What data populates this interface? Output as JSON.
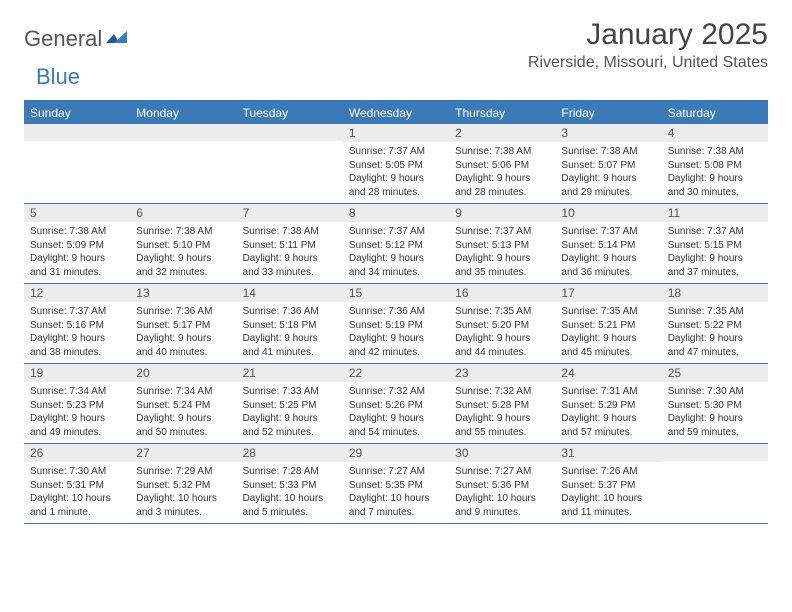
{
  "logo": {
    "general": "General",
    "blue": "Blue"
  },
  "title": "January 2025",
  "subtitle": "Riverside, Missouri, United States",
  "colors": {
    "accent": "#3a7ab8",
    "band": "#ececec",
    "text": "#333333",
    "title_text": "#444444",
    "subtitle_text": "#555555",
    "background": "#ffffff"
  },
  "typography": {
    "title_fontsize": 30,
    "subtitle_fontsize": 16,
    "weekday_fontsize": 12,
    "daynum_fontsize": 12,
    "body_fontsize": 10
  },
  "weekdays": [
    "Sunday",
    "Monday",
    "Tuesday",
    "Wednesday",
    "Thursday",
    "Friday",
    "Saturday"
  ],
  "weeks": [
    [
      {
        "n": "",
        "lines": []
      },
      {
        "n": "",
        "lines": []
      },
      {
        "n": "",
        "lines": []
      },
      {
        "n": "1",
        "lines": [
          "Sunrise: 7:37 AM",
          "Sunset: 5:05 PM",
          "Daylight: 9 hours",
          "and 28 minutes."
        ]
      },
      {
        "n": "2",
        "lines": [
          "Sunrise: 7:38 AM",
          "Sunset: 5:06 PM",
          "Daylight: 9 hours",
          "and 28 minutes."
        ]
      },
      {
        "n": "3",
        "lines": [
          "Sunrise: 7:38 AM",
          "Sunset: 5:07 PM",
          "Daylight: 9 hours",
          "and 29 minutes."
        ]
      },
      {
        "n": "4",
        "lines": [
          "Sunrise: 7:38 AM",
          "Sunset: 5:08 PM",
          "Daylight: 9 hours",
          "and 30 minutes."
        ]
      }
    ],
    [
      {
        "n": "5",
        "lines": [
          "Sunrise: 7:38 AM",
          "Sunset: 5:09 PM",
          "Daylight: 9 hours",
          "and 31 minutes."
        ]
      },
      {
        "n": "6",
        "lines": [
          "Sunrise: 7:38 AM",
          "Sunset: 5:10 PM",
          "Daylight: 9 hours",
          "and 32 minutes."
        ]
      },
      {
        "n": "7",
        "lines": [
          "Sunrise: 7:38 AM",
          "Sunset: 5:11 PM",
          "Daylight: 9 hours",
          "and 33 minutes."
        ]
      },
      {
        "n": "8",
        "lines": [
          "Sunrise: 7:37 AM",
          "Sunset: 5:12 PM",
          "Daylight: 9 hours",
          "and 34 minutes."
        ]
      },
      {
        "n": "9",
        "lines": [
          "Sunrise: 7:37 AM",
          "Sunset: 5:13 PM",
          "Daylight: 9 hours",
          "and 35 minutes."
        ]
      },
      {
        "n": "10",
        "lines": [
          "Sunrise: 7:37 AM",
          "Sunset: 5:14 PM",
          "Daylight: 9 hours",
          "and 36 minutes."
        ]
      },
      {
        "n": "11",
        "lines": [
          "Sunrise: 7:37 AM",
          "Sunset: 5:15 PM",
          "Daylight: 9 hours",
          "and 37 minutes."
        ]
      }
    ],
    [
      {
        "n": "12",
        "lines": [
          "Sunrise: 7:37 AM",
          "Sunset: 5:16 PM",
          "Daylight: 9 hours",
          "and 38 minutes."
        ]
      },
      {
        "n": "13",
        "lines": [
          "Sunrise: 7:36 AM",
          "Sunset: 5:17 PM",
          "Daylight: 9 hours",
          "and 40 minutes."
        ]
      },
      {
        "n": "14",
        "lines": [
          "Sunrise: 7:36 AM",
          "Sunset: 5:18 PM",
          "Daylight: 9 hours",
          "and 41 minutes."
        ]
      },
      {
        "n": "15",
        "lines": [
          "Sunrise: 7:36 AM",
          "Sunset: 5:19 PM",
          "Daylight: 9 hours",
          "and 42 minutes."
        ]
      },
      {
        "n": "16",
        "lines": [
          "Sunrise: 7:35 AM",
          "Sunset: 5:20 PM",
          "Daylight: 9 hours",
          "and 44 minutes."
        ]
      },
      {
        "n": "17",
        "lines": [
          "Sunrise: 7:35 AM",
          "Sunset: 5:21 PM",
          "Daylight: 9 hours",
          "and 45 minutes."
        ]
      },
      {
        "n": "18",
        "lines": [
          "Sunrise: 7:35 AM",
          "Sunset: 5:22 PM",
          "Daylight: 9 hours",
          "and 47 minutes."
        ]
      }
    ],
    [
      {
        "n": "19",
        "lines": [
          "Sunrise: 7:34 AM",
          "Sunset: 5:23 PM",
          "Daylight: 9 hours",
          "and 49 minutes."
        ]
      },
      {
        "n": "20",
        "lines": [
          "Sunrise: 7:34 AM",
          "Sunset: 5:24 PM",
          "Daylight: 9 hours",
          "and 50 minutes."
        ]
      },
      {
        "n": "21",
        "lines": [
          "Sunrise: 7:33 AM",
          "Sunset: 5:25 PM",
          "Daylight: 9 hours",
          "and 52 minutes."
        ]
      },
      {
        "n": "22",
        "lines": [
          "Sunrise: 7:32 AM",
          "Sunset: 5:26 PM",
          "Daylight: 9 hours",
          "and 54 minutes."
        ]
      },
      {
        "n": "23",
        "lines": [
          "Sunrise: 7:32 AM",
          "Sunset: 5:28 PM",
          "Daylight: 9 hours",
          "and 55 minutes."
        ]
      },
      {
        "n": "24",
        "lines": [
          "Sunrise: 7:31 AM",
          "Sunset: 5:29 PM",
          "Daylight: 9 hours",
          "and 57 minutes."
        ]
      },
      {
        "n": "25",
        "lines": [
          "Sunrise: 7:30 AM",
          "Sunset: 5:30 PM",
          "Daylight: 9 hours",
          "and 59 minutes."
        ]
      }
    ],
    [
      {
        "n": "26",
        "lines": [
          "Sunrise: 7:30 AM",
          "Sunset: 5:31 PM",
          "Daylight: 10 hours",
          "and 1 minute."
        ]
      },
      {
        "n": "27",
        "lines": [
          "Sunrise: 7:29 AM",
          "Sunset: 5:32 PM",
          "Daylight: 10 hours",
          "and 3 minutes."
        ]
      },
      {
        "n": "28",
        "lines": [
          "Sunrise: 7:28 AM",
          "Sunset: 5:33 PM",
          "Daylight: 10 hours",
          "and 5 minutes."
        ]
      },
      {
        "n": "29",
        "lines": [
          "Sunrise: 7:27 AM",
          "Sunset: 5:35 PM",
          "Daylight: 10 hours",
          "and 7 minutes."
        ]
      },
      {
        "n": "30",
        "lines": [
          "Sunrise: 7:27 AM",
          "Sunset: 5:36 PM",
          "Daylight: 10 hours",
          "and 9 minutes."
        ]
      },
      {
        "n": "31",
        "lines": [
          "Sunrise: 7:26 AM",
          "Sunset: 5:37 PM",
          "Daylight: 10 hours",
          "and 11 minutes."
        ]
      },
      {
        "n": "",
        "lines": []
      }
    ]
  ]
}
